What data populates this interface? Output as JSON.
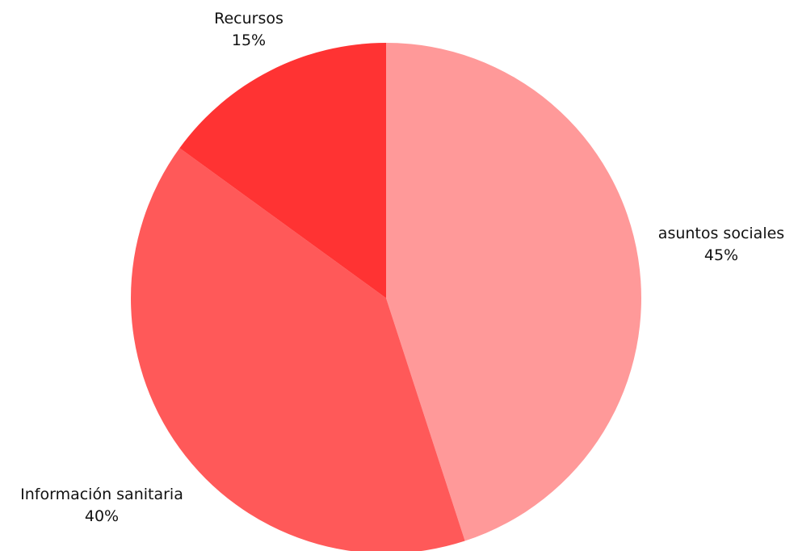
{
  "chart_data": {
    "type": "pie",
    "title": "",
    "slices": [
      {
        "label": "asuntos sociales",
        "value": 45,
        "value_label": "45%",
        "color": "#ff9999"
      },
      {
        "label": "Información sanitaria",
        "value": 40,
        "value_label": "40%",
        "color": "#ff5959"
      },
      {
        "label": "Recursos",
        "value": 15,
        "value_label": "15%",
        "color": "#ff3333"
      }
    ],
    "start_angle": "12 o'clock",
    "direction": "clockwise",
    "legend": "none"
  }
}
